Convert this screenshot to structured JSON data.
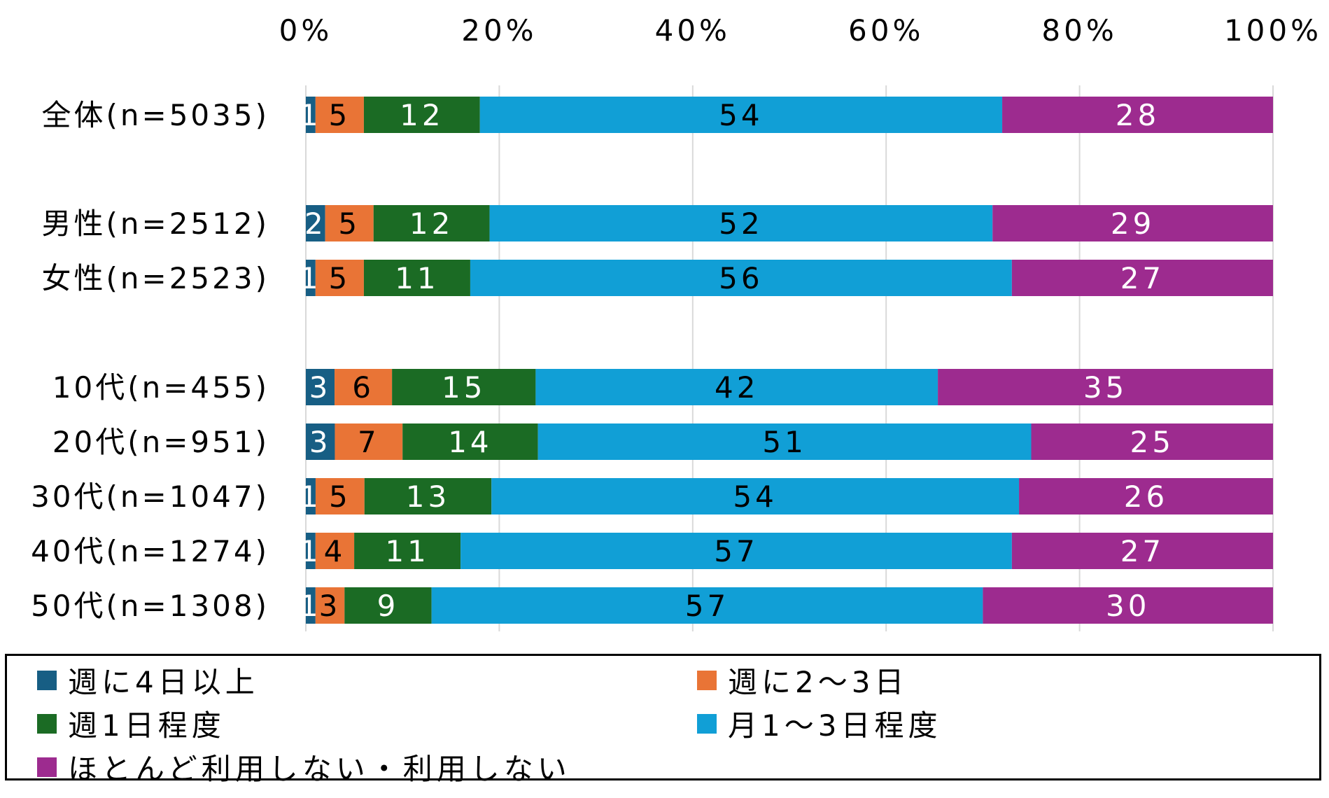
{
  "chart_data": {
    "type": "bar",
    "orientation": "horizontal",
    "stacked": "percent",
    "title": "",
    "xlabel": "",
    "ylabel": "",
    "xlim": [
      0,
      100
    ],
    "x_ticks": [
      "0%",
      "20%",
      "40%",
      "60%",
      "80%",
      "100%"
    ],
    "grid": true,
    "legend_position": "bottom",
    "categories": [
      "全体(n=5035)",
      "男性(n=2512)",
      "女性(n=2523)",
      "10代(n=455)",
      "20代(n=951)",
      "30代(n=1047)",
      "40代(n=1274)",
      "50代(n=1308)"
    ],
    "series": [
      {
        "name": "週に4日以上",
        "color": "#175e84",
        "label_color": "#ffffff",
        "values": [
          1,
          2,
          1,
          3,
          3,
          1,
          1,
          1
        ]
      },
      {
        "name": "週に2～3日",
        "color": "#e97436",
        "label_color": "#000000",
        "values": [
          5,
          5,
          5,
          6,
          7,
          5,
          4,
          3
        ]
      },
      {
        "name": "週1日程度",
        "color": "#1b6b24",
        "label_color": "#ffffff",
        "values": [
          12,
          12,
          11,
          15,
          14,
          13,
          11,
          9
        ]
      },
      {
        "name": "月1～3日程度",
        "color": "#119fd6",
        "label_color": "#000000",
        "values": [
          54,
          52,
          56,
          42,
          51,
          54,
          57,
          57
        ]
      },
      {
        "name": "ほとんど利用しない・利用しない",
        "color": "#9d2b8f",
        "label_color": "#ffffff",
        "values": [
          28,
          29,
          27,
          35,
          25,
          26,
          27,
          30
        ]
      }
    ]
  }
}
